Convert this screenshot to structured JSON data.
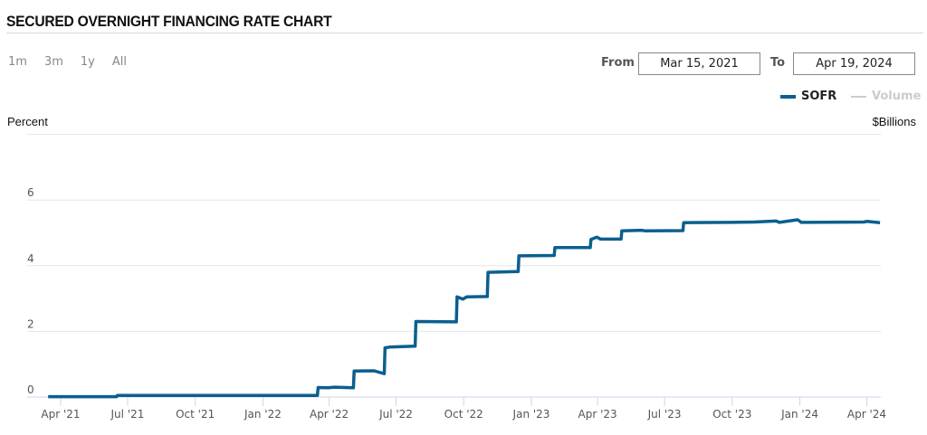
{
  "header": {
    "title": "SECURED OVERNIGHT FINANCING RATE CHART"
  },
  "range_buttons": [
    "1m",
    "3m",
    "1y",
    "All"
  ],
  "date_range": {
    "from_label": "From",
    "from_value": "Mar 15, 2021",
    "to_label": "To",
    "to_value": "Apr 19, 2024"
  },
  "legend": [
    {
      "name": "SOFR",
      "color": "#0b5f8f",
      "active": true
    },
    {
      "name": "Volume",
      "color": "#cccccc",
      "active": false
    }
  ],
  "chart_data": {
    "type": "line",
    "ylabel_left": "Percent",
    "ylabel_right": "$Billions",
    "ylim": [
      0,
      8
    ],
    "yticks": [
      "0",
      "2",
      "4",
      "6"
    ],
    "xlim": [
      "2021-03-15",
      "2024-04-19"
    ],
    "xticks": [
      {
        "date": "2021-04-01",
        "label": "Apr '21"
      },
      {
        "date": "2021-07-01",
        "label": "Jul '21"
      },
      {
        "date": "2021-10-01",
        "label": "Oct '21"
      },
      {
        "date": "2022-01-01",
        "label": "Jan '22"
      },
      {
        "date": "2022-04-01",
        "label": "Apr '22"
      },
      {
        "date": "2022-07-01",
        "label": "Jul '22"
      },
      {
        "date": "2022-10-01",
        "label": "Oct '22"
      },
      {
        "date": "2023-01-01",
        "label": "Jan '23"
      },
      {
        "date": "2023-04-01",
        "label": "Apr '23"
      },
      {
        "date": "2023-07-01",
        "label": "Jul '23"
      },
      {
        "date": "2023-10-01",
        "label": "Oct '23"
      },
      {
        "date": "2024-01-01",
        "label": "Jan '24"
      },
      {
        "date": "2024-04-01",
        "label": "Apr '24"
      }
    ],
    "grid": true,
    "series": [
      {
        "name": "SOFR",
        "color": "#0b5f8f",
        "points": [
          [
            "2021-03-15",
            0.01
          ],
          [
            "2021-06-16",
            0.01
          ],
          [
            "2021-06-17",
            0.05
          ],
          [
            "2022-03-16",
            0.05
          ],
          [
            "2022-03-17",
            0.29
          ],
          [
            "2022-03-31",
            0.28
          ],
          [
            "2022-04-08",
            0.3
          ],
          [
            "2022-05-04",
            0.28
          ],
          [
            "2022-05-05",
            0.79
          ],
          [
            "2022-06-01",
            0.8
          ],
          [
            "2022-06-15",
            0.71
          ],
          [
            "2022-06-16",
            1.5
          ],
          [
            "2022-06-22",
            1.52
          ],
          [
            "2022-07-27",
            1.55
          ],
          [
            "2022-07-28",
            2.3
          ],
          [
            "2022-09-21",
            2.29
          ],
          [
            "2022-09-22",
            3.05
          ],
          [
            "2022-09-30",
            2.98
          ],
          [
            "2022-10-05",
            3.05
          ],
          [
            "2022-11-02",
            3.06
          ],
          [
            "2022-11-03",
            3.8
          ],
          [
            "2022-12-14",
            3.82
          ],
          [
            "2022-12-15",
            4.3
          ],
          [
            "2023-02-01",
            4.31
          ],
          [
            "2023-02-02",
            4.55
          ],
          [
            "2023-03-22",
            4.55
          ],
          [
            "2023-03-23",
            4.8
          ],
          [
            "2023-03-31",
            4.87
          ],
          [
            "2023-04-05",
            4.81
          ],
          [
            "2023-05-03",
            4.81
          ],
          [
            "2023-05-04",
            5.06
          ],
          [
            "2023-05-31",
            5.08
          ],
          [
            "2023-06-05",
            5.06
          ],
          [
            "2023-07-26",
            5.07
          ],
          [
            "2023-07-27",
            5.31
          ],
          [
            "2023-09-29",
            5.32
          ],
          [
            "2023-10-31",
            5.33
          ],
          [
            "2023-11-30",
            5.36
          ],
          [
            "2023-12-04",
            5.32
          ],
          [
            "2023-12-29",
            5.4
          ],
          [
            "2024-01-03",
            5.32
          ],
          [
            "2024-03-28",
            5.33
          ],
          [
            "2024-04-01",
            5.35
          ],
          [
            "2024-04-19",
            5.31
          ]
        ]
      }
    ]
  }
}
